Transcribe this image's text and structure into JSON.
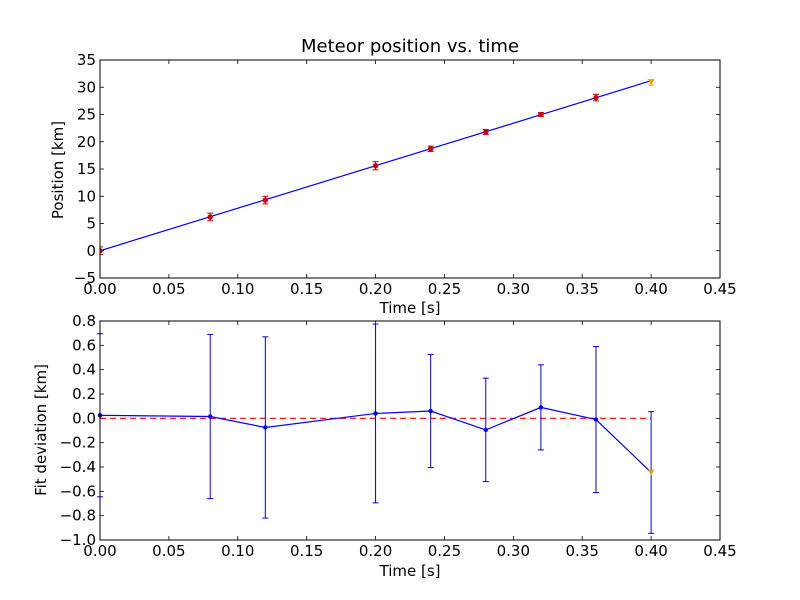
{
  "chart_data": [
    {
      "type": "line",
      "title": "Meteor position vs. time",
      "xlabel": "Time [s]",
      "ylabel": "Position [km]",
      "xlim": [
        0.0,
        0.45
      ],
      "ylim": [
        -5,
        35
      ],
      "xticks": [
        "0.00",
        "0.05",
        "0.10",
        "0.15",
        "0.20",
        "0.25",
        "0.30",
        "0.35",
        "0.40",
        "0.45"
      ],
      "yticks": [
        "−5",
        "0",
        "5",
        "10",
        "15",
        "20",
        "25",
        "30",
        "35"
      ],
      "fit_line": {
        "x": [
          0.0,
          0.4
        ],
        "y": [
          0.0,
          31.2
        ],
        "color": "#0000ff"
      },
      "points": {
        "x": [
          0.0,
          0.08,
          0.12,
          0.2,
          0.24,
          0.28,
          0.32,
          0.36
        ],
        "y": [
          0.0,
          6.2,
          9.3,
          15.6,
          18.7,
          21.8,
          25.0,
          28.1
        ],
        "yerr": [
          0.7,
          0.7,
          0.7,
          0.75,
          0.5,
          0.45,
          0.35,
          0.6
        ],
        "color": "#cc0000"
      },
      "excluded_point": {
        "x": 0.4,
        "y": 30.9,
        "yerr": 0.5,
        "color": "#e0a000"
      }
    },
    {
      "type": "line",
      "title": "",
      "xlabel": "Time [s]",
      "ylabel": "Fit deviation [km]",
      "xlim": [
        0.0,
        0.45
      ],
      "ylim": [
        -1.0,
        0.8
      ],
      "xticks": [
        "0.00",
        "0.05",
        "0.10",
        "0.15",
        "0.20",
        "0.25",
        "0.30",
        "0.35",
        "0.40",
        "0.45"
      ],
      "yticks": [
        "−1.0",
        "−0.8",
        "−0.6",
        "−0.4",
        "−0.2",
        "0.0",
        "0.2",
        "0.4",
        "0.6",
        "0.8"
      ],
      "residuals": {
        "x": [
          0.0,
          0.08,
          0.12,
          0.2,
          0.24,
          0.28,
          0.32,
          0.36,
          0.4
        ],
        "y": [
          0.025,
          0.015,
          -0.075,
          0.04,
          0.06,
          -0.095,
          0.09,
          -0.01,
          -0.445
        ],
        "yerr": [
          0.67,
          0.675,
          0.745,
          0.735,
          0.465,
          0.425,
          0.35,
          0.6,
          0.5
        ],
        "color": "#0000ff"
      },
      "zero_line": {
        "y": 0.0,
        "color": "#ff0000",
        "style": "dashed"
      },
      "excluded_marker": {
        "x": 0.4,
        "y": -0.445,
        "color": "#e0a000"
      }
    }
  ]
}
